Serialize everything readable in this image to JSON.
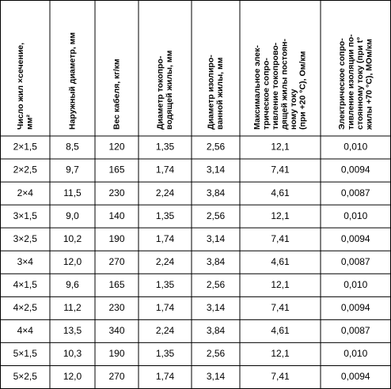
{
  "table": {
    "header": [
      [
        "Число жил ×сечение,",
        "мм²"
      ],
      [
        "Наружный диаметр, мм"
      ],
      [
        "Вес кабеля,  кг/км"
      ],
      [
        "Диаметр токопро-",
        "водящей жилы, мм"
      ],
      [
        "Диаметр изолиро-",
        "ванной жилы, мм"
      ],
      [
        "Максимальное элек-",
        "трическое сопро-",
        "тивление токопрово-",
        "дящей жилы постоян-",
        "ному току",
        "(при +20 °C), Ом/км"
      ],
      [
        "Электрическое сопро-",
        "тивление изоляции по-",
        "стоянному току (при t°",
        "жилы +70 °C), МОм/км"
      ]
    ],
    "rows": [
      [
        "2×1,5",
        "8,5",
        "120",
        "1,35",
        "2,56",
        "12,1",
        "0,010"
      ],
      [
        "2×2,5",
        "9,7",
        "165",
        "1,74",
        "3,14",
        "7,41",
        "0,0094"
      ],
      [
        "2×4",
        "11,5",
        "230",
        "2,24",
        "3,84",
        "4,61",
        "0,0087"
      ],
      [
        "3×1,5",
        "9,0",
        "140",
        "1,35",
        "2,56",
        "12,1",
        "0,010"
      ],
      [
        "3×2,5",
        "10,2",
        "190",
        "1,74",
        "3,14",
        "7,41",
        "0,0094"
      ],
      [
        "3×4",
        "12,0",
        "270",
        "2,24",
        "3,84",
        "4,61",
        "0,0087"
      ],
      [
        "4×1,5",
        "9,6",
        "165",
        "1,35",
        "2,56",
        "12,1",
        "0,010"
      ],
      [
        "4×2,5",
        "11,2",
        "230",
        "1,74",
        "3,14",
        "7,41",
        "0,0094"
      ],
      [
        "4×4",
        "13,5",
        "340",
        "2,24",
        "3,84",
        "4,61",
        "0,0087"
      ],
      [
        "5×1,5",
        "10,3",
        "190",
        "1,35",
        "2,56",
        "12,1",
        "0,010"
      ],
      [
        "5×2,5",
        "12,0",
        "270",
        "1,74",
        "3,14",
        "7,41",
        "0,0094"
      ]
    ]
  }
}
